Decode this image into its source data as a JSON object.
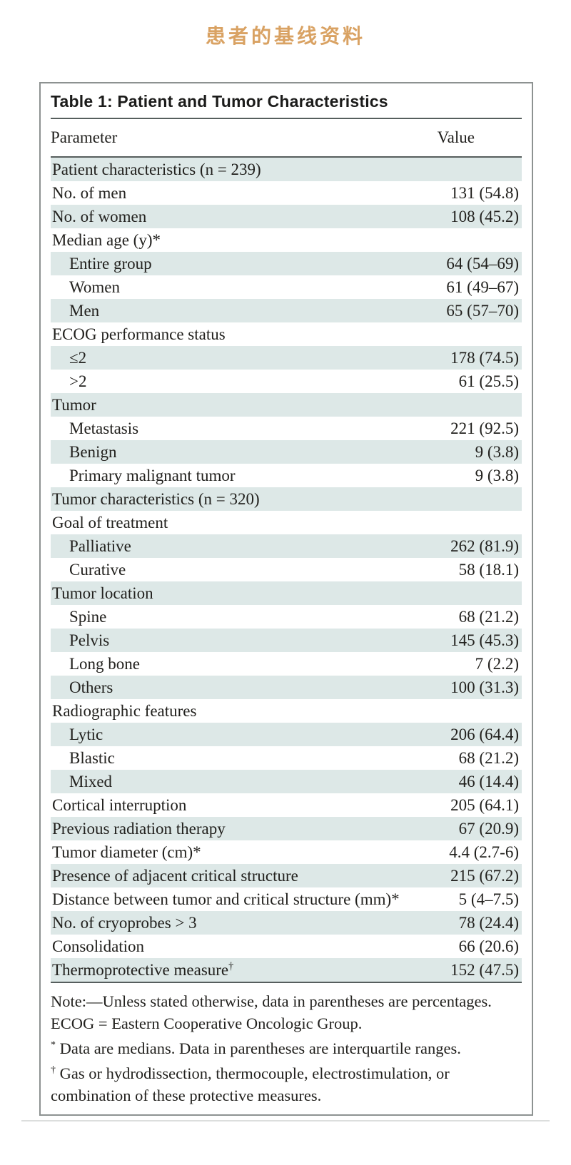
{
  "page": {
    "heading": "患者的基线资料"
  },
  "colors": {
    "heading": "#d9a263",
    "row_shade": "#dde8e7",
    "rule": "#565e5d",
    "border": "#8d9291",
    "text": "#22211e"
  },
  "table": {
    "title": "Table 1: Patient and Tumor Characteristics",
    "columns": [
      "Parameter",
      "Value"
    ],
    "rows": [
      {
        "label": "Patient characteristics (n = 239)",
        "value": "",
        "indent": 0,
        "shaded": true
      },
      {
        "label": "No. of men",
        "value": "131 (54.8)",
        "indent": 0,
        "shaded": false
      },
      {
        "label": "No. of women",
        "value": "108 (45.2)",
        "indent": 0,
        "shaded": true
      },
      {
        "label": "Median age (y)*",
        "value": "",
        "indent": 0,
        "shaded": false
      },
      {
        "label": "Entire group",
        "value": "64 (54–69)",
        "indent": 1,
        "shaded": true
      },
      {
        "label": "Women",
        "value": "61 (49–67)",
        "indent": 1,
        "shaded": false
      },
      {
        "label": "Men",
        "value": "65 (57–70)",
        "indent": 1,
        "shaded": true
      },
      {
        "label": "ECOG performance status",
        "value": "",
        "indent": 0,
        "shaded": false
      },
      {
        "label": "≤2",
        "value": "178 (74.5)",
        "indent": 1,
        "shaded": true
      },
      {
        "label": ">2",
        "value": "61 (25.5)",
        "indent": 1,
        "shaded": false
      },
      {
        "label": "Tumor",
        "value": "",
        "indent": 0,
        "shaded": true
      },
      {
        "label": "Metastasis",
        "value": "221 (92.5)",
        "indent": 1,
        "shaded": false
      },
      {
        "label": "Benign",
        "value": "9 (3.8)",
        "indent": 1,
        "shaded": true
      },
      {
        "label": "Primary malignant tumor",
        "value": "9 (3.8)",
        "indent": 1,
        "shaded": false
      },
      {
        "label": "Tumor characteristics (n = 320)",
        "value": "",
        "indent": 0,
        "shaded": true
      },
      {
        "label": "Goal of treatment",
        "value": "",
        "indent": 0,
        "shaded": false
      },
      {
        "label": "Palliative",
        "value": "262 (81.9)",
        "indent": 1,
        "shaded": true
      },
      {
        "label": "Curative",
        "value": "58 (18.1)",
        "indent": 1,
        "shaded": false
      },
      {
        "label": "Tumor location",
        "value": "",
        "indent": 0,
        "shaded": true
      },
      {
        "label": "Spine",
        "value": "68 (21.2)",
        "indent": 1,
        "shaded": false
      },
      {
        "label": "Pelvis",
        "value": "145 (45.3)",
        "indent": 1,
        "shaded": true
      },
      {
        "label": "Long bone",
        "value": "7 (2.2)",
        "indent": 1,
        "shaded": false
      },
      {
        "label": "Others",
        "value": "100 (31.3)",
        "indent": 1,
        "shaded": true
      },
      {
        "label": "Radiographic features",
        "value": "",
        "indent": 0,
        "shaded": false
      },
      {
        "label": "Lytic",
        "value": "206 (64.4)",
        "indent": 1,
        "shaded": true
      },
      {
        "label": "Blastic",
        "value": "68 (21.2)",
        "indent": 1,
        "shaded": false
      },
      {
        "label": "Mixed",
        "value": "46 (14.4)",
        "indent": 1,
        "shaded": true
      },
      {
        "label": "Cortical interruption",
        "value": "205 (64.1)",
        "indent": 0,
        "shaded": false
      },
      {
        "label": "Previous radiation therapy",
        "value": "67 (20.9)",
        "indent": 0,
        "shaded": true
      },
      {
        "label": "Tumor diameter (cm)*",
        "value": "4.4 (2.7-6)",
        "indent": 0,
        "shaded": false
      },
      {
        "label": "Presence of adjacent critical structure",
        "value": "215 (67.2)",
        "indent": 0,
        "shaded": true
      },
      {
        "label": "Distance between tumor and critical structure (mm)*",
        "value": "5 (4–7.5)",
        "indent": 0,
        "shaded": false
      },
      {
        "label": "No. of cryoprobes > 3",
        "value": "78 (24.4)",
        "indent": 0,
        "shaded": true
      },
      {
        "label": "Consolidation",
        "value": "66 (20.6)",
        "indent": 0,
        "shaded": false
      },
      {
        "label": "Thermoprotective measure",
        "sup": "†",
        "value": "152 (47.5)",
        "indent": 0,
        "shaded": true
      }
    ]
  },
  "footnotes": {
    "note": "Note:—Unless stated otherwise, data in parentheses are percentages. ECOG = Eastern Cooperative Oncologic Group.",
    "asterisk": {
      "marker": "*",
      "text": "Data are medians. Data in parentheses are interquartile ranges."
    },
    "dagger": {
      "marker": "†",
      "text": "Gas or hydrodissection, thermocouple, electrostimulation, or combination of these protective measures."
    }
  }
}
